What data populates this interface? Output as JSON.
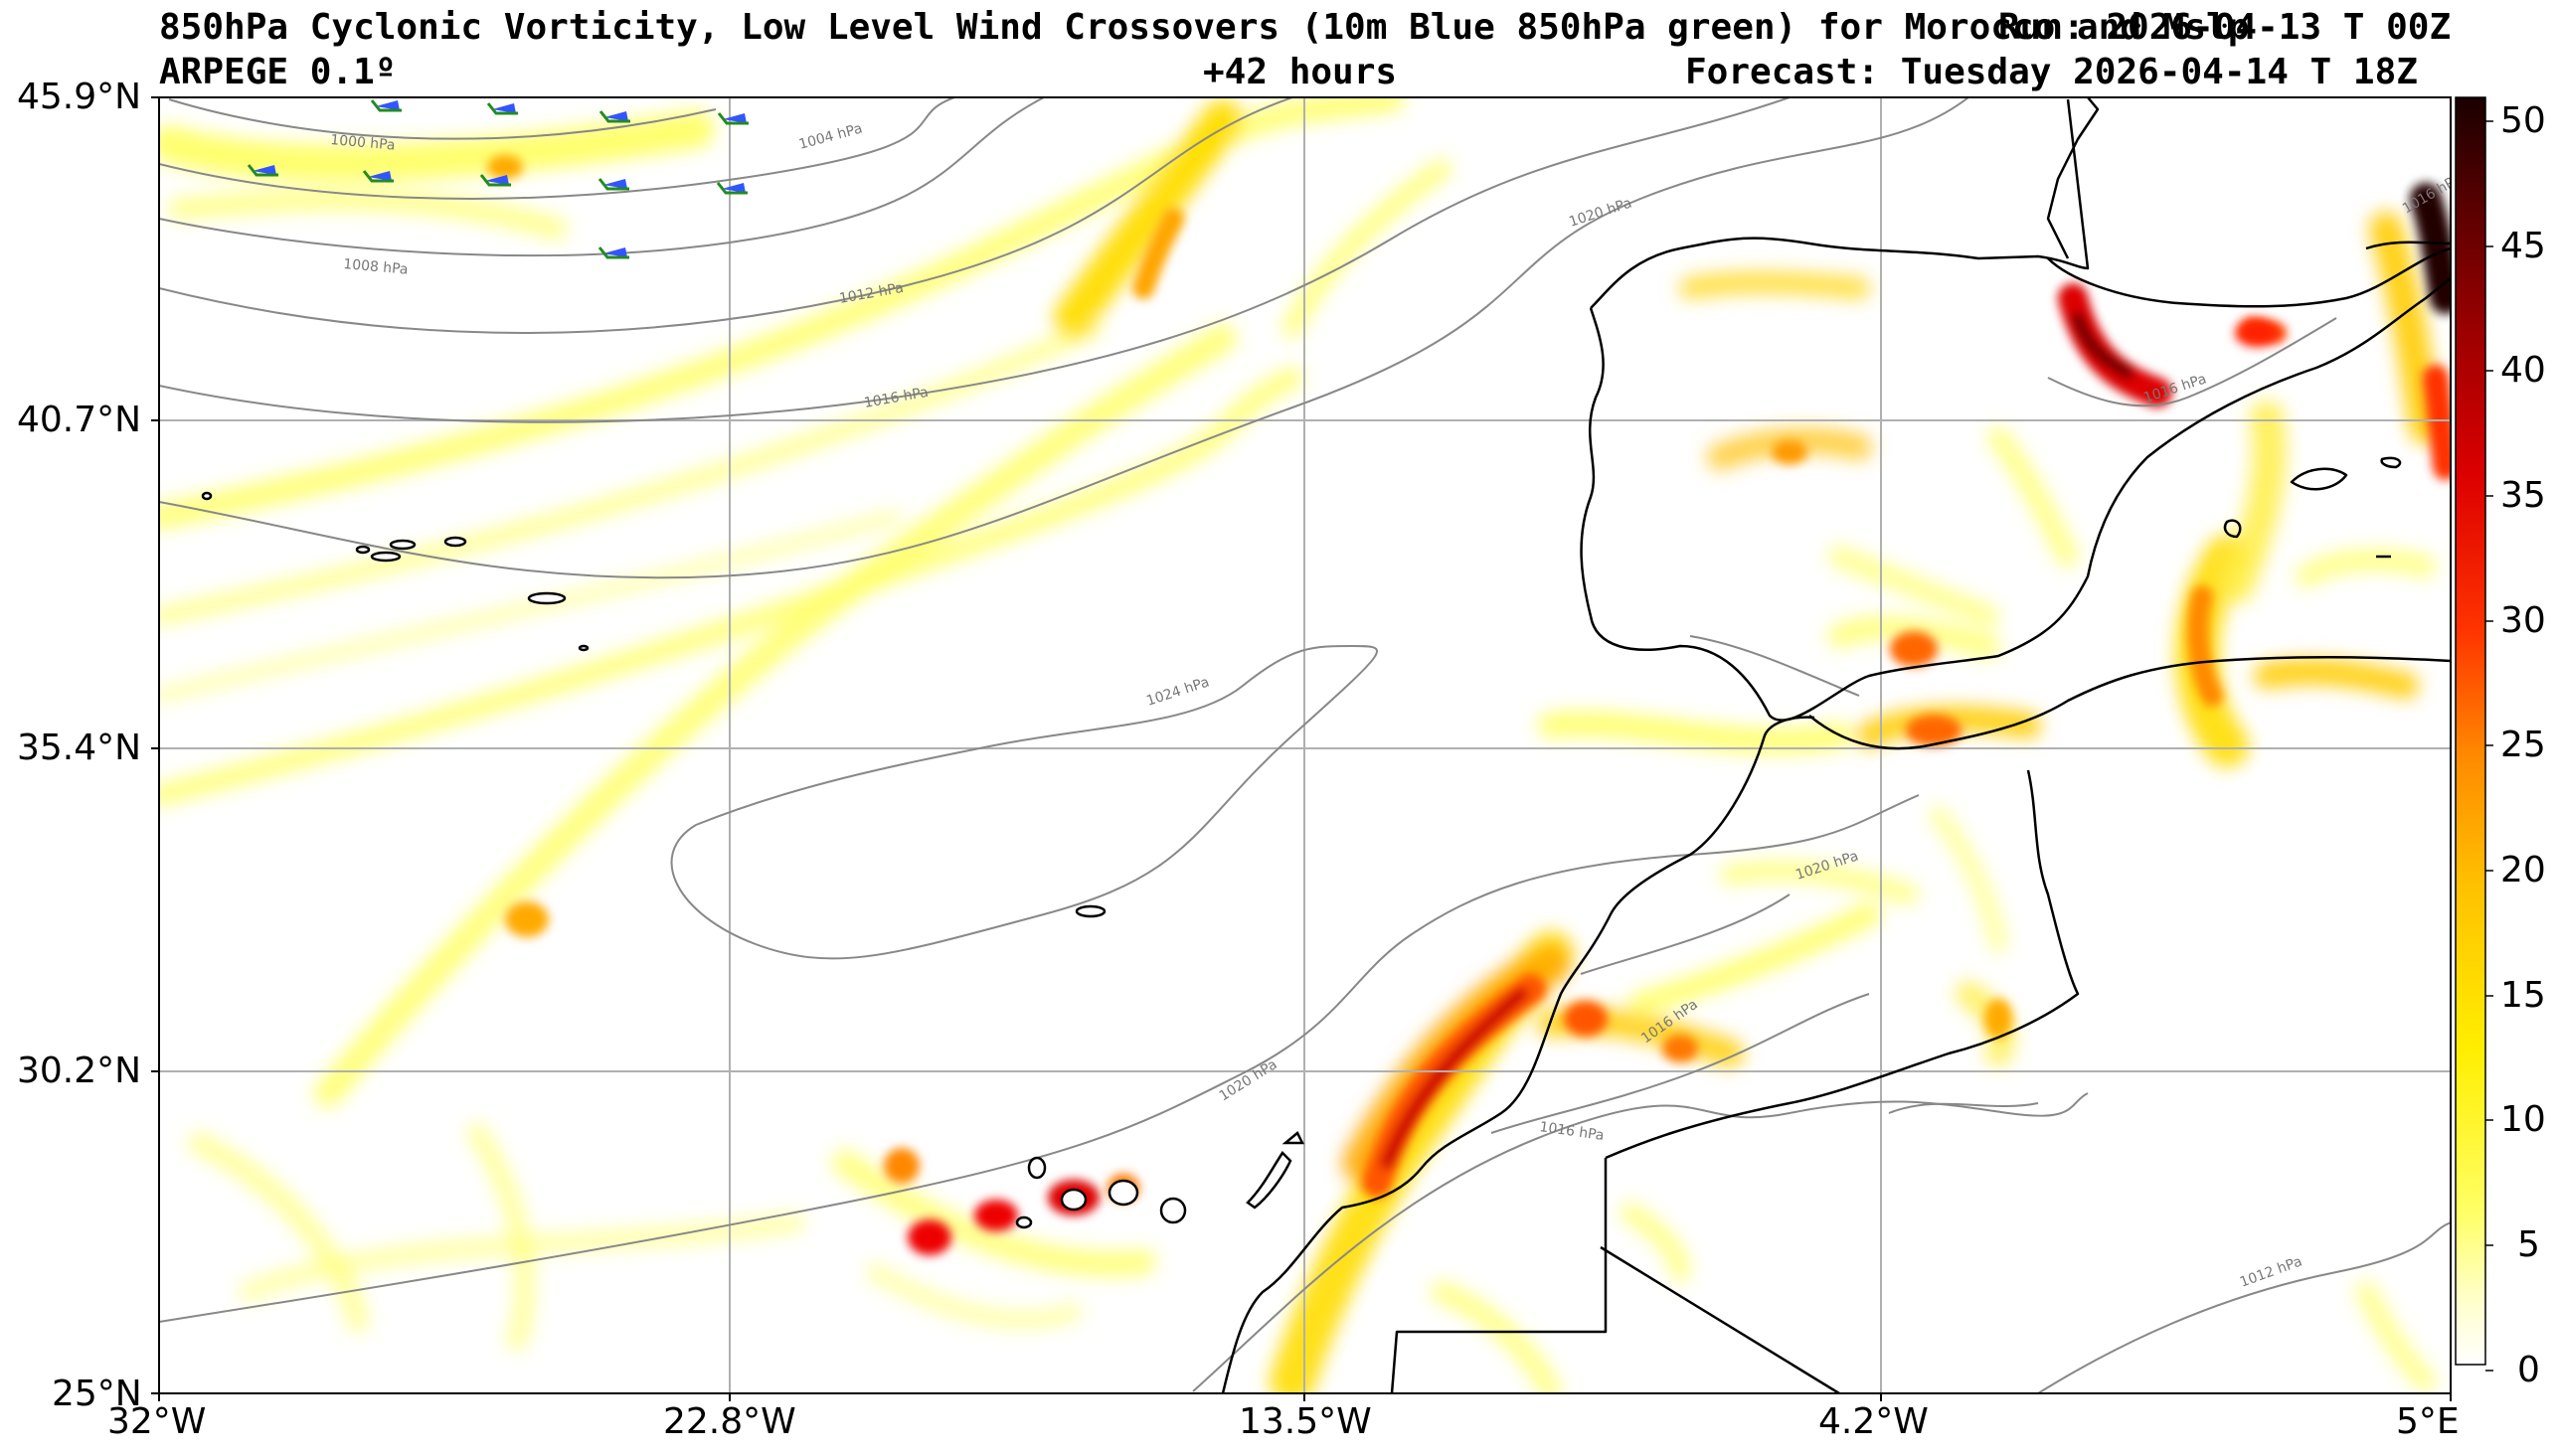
{
  "titles": {
    "line1": "850hPa Cyclonic Vorticity, Low Level Wind Crossovers (10m Blue 850hPa green) for Morocco and Mslp",
    "run": "Run: 2026-04-13 T 00Z",
    "model": "ARPEGE 0.1º",
    "lead": "+42 hours",
    "forecast": "Forecast: Tuesday 2026-04-14 T 18Z"
  },
  "axes": {
    "lat_labels": [
      "45.9°N",
      "40.7°N",
      "35.4°N",
      "30.2°N",
      "25°N"
    ],
    "lon_labels": [
      "32°W",
      "22.8°W",
      "13.5°W",
      "4.2°W",
      "5°E"
    ]
  },
  "colorbar": {
    "tick_labels": [
      "50",
      "45",
      "40",
      "35",
      "30",
      "25",
      "20",
      "15",
      "10",
      "5",
      "0"
    ],
    "stops": [
      "#ffffff",
      "#ffff99",
      "#ffff00",
      "#ffd700",
      "#ffa500",
      "#ff6600",
      "#ff0000",
      "#cc0000",
      "#8b0000",
      "#400000",
      "#1a0000"
    ]
  },
  "isobar_labels": [
    "1000 hPa",
    "1004 hPa",
    "1008 hPa",
    "1012 hPa",
    "1016 hPa",
    "1020 hPa",
    "1024 hPa",
    "1020 hPa",
    "1016 hPa",
    "1016 hPa",
    "1012 hPa",
    "1020 hPa",
    "1016 hPa",
    "1016 hPa"
  ],
  "colors": {
    "isobar": "#888888",
    "coast": "#000000",
    "grid": "#b0b0b0",
    "wind_10m": "#3355ff",
    "wind_850": "#228b22"
  }
}
